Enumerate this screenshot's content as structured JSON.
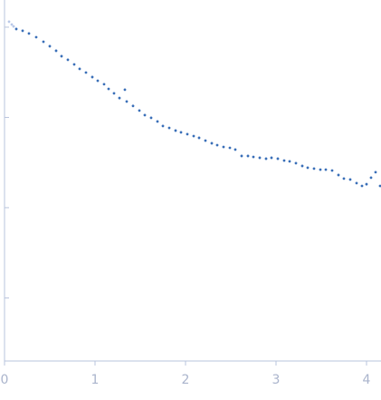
{
  "chart_data": {
    "type": "scatter",
    "xlim": [
      0,
      4.16
    ],
    "xticks": [
      0,
      1,
      2,
      3,
      4
    ],
    "ylim": [
      0.0002,
      2
    ],
    "yticks": [
      0.001,
      0.01,
      0.1,
      1
    ],
    "log_y": true,
    "axis_color": "#b8c4dc",
    "series": [
      {
        "color": "#b9c8e8",
        "x": [
          0.05,
          0.08,
          0.1
        ],
        "values": [
          1.15,
          1.07,
          1.02
        ]
      },
      {
        "color": "#3a6fb8",
        "x": [
          0.13,
          0.2,
          0.27,
          0.35,
          0.43,
          0.5,
          0.57,
          0.63,
          0.7,
          0.77,
          0.83,
          0.9,
          0.97,
          1.03,
          1.1,
          1.15,
          1.21,
          1.27,
          1.33,
          1.35,
          1.42,
          1.49,
          1.55,
          1.62,
          1.69,
          1.75,
          1.82,
          1.89,
          1.95,
          2.02,
          2.09,
          2.15,
          2.22,
          2.29,
          2.35,
          2.42,
          2.49,
          2.55,
          2.62,
          2.69,
          2.75,
          2.82,
          2.89,
          2.95,
          3.02,
          3.09,
          3.15,
          3.22,
          3.29,
          3.35,
          3.42,
          3.49,
          3.55,
          3.62,
          3.69,
          3.75,
          3.82,
          3.89,
          3.95,
          4.0,
          4.05,
          4.1,
          4.15
        ],
        "values": [
          0.955,
          0.912,
          0.851,
          0.775,
          0.69,
          0.615,
          0.548,
          0.477,
          0.435,
          0.387,
          0.345,
          0.314,
          0.28,
          0.255,
          0.233,
          0.207,
          0.185,
          0.164,
          0.203,
          0.15,
          0.134,
          0.119,
          0.106,
          0.0989,
          0.0901,
          0.0803,
          0.0766,
          0.0715,
          0.0683,
          0.0652,
          0.0622,
          0.0594,
          0.0554,
          0.0517,
          0.0493,
          0.0471,
          0.046,
          0.044,
          0.0374,
          0.0374,
          0.0365,
          0.0357,
          0.0349,
          0.0357,
          0.0349,
          0.0333,
          0.0326,
          0.0311,
          0.029,
          0.0277,
          0.0271,
          0.0264,
          0.0264,
          0.0258,
          0.023,
          0.021,
          0.0205,
          0.0187,
          0.0174,
          0.0182,
          0.0215,
          0.0247,
          0.0174
        ]
      }
    ]
  }
}
